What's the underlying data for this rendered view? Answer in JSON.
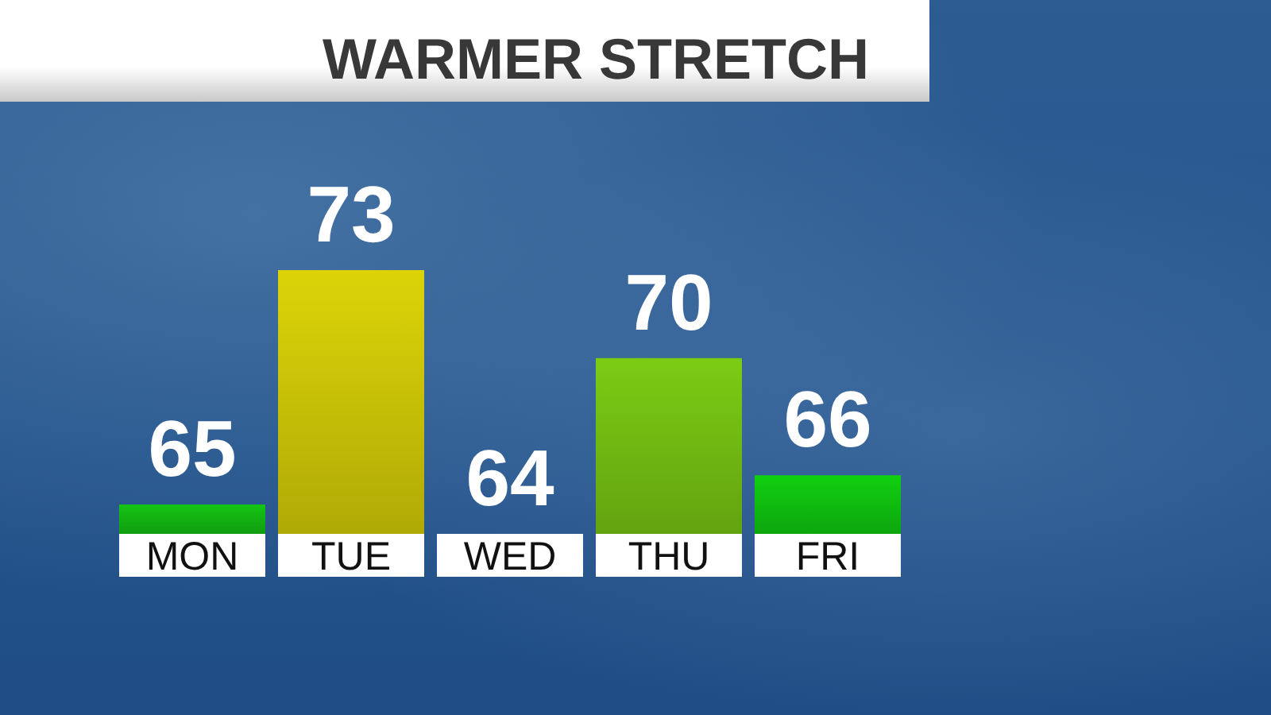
{
  "chart_data": {
    "type": "bar",
    "title": "WARMER STRETCH",
    "categories": [
      "MON",
      "TUE",
      "WED",
      "THU",
      "FRI"
    ],
    "values": [
      65,
      73,
      64,
      70,
      66
    ],
    "colors": [
      "#14c414",
      "#dcd408",
      null,
      "#7ccc14",
      "#10d010"
    ],
    "ylim": [
      64,
      73
    ],
    "data_labels": true,
    "tick_labels": "x"
  }
}
